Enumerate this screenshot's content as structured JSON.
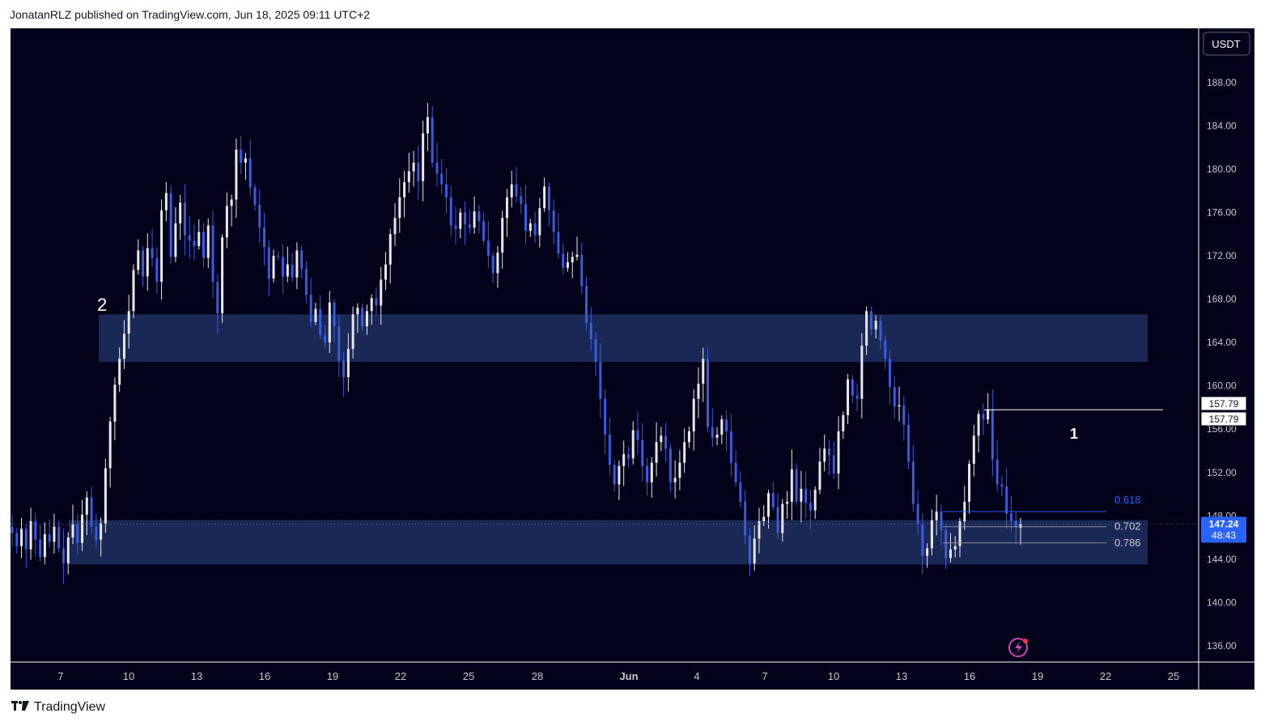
{
  "header": {
    "published": "JonatanRLZ published on TradingView.com, Jun 18, 2025 09:11 UTC+2"
  },
  "footer": {
    "brand": "TradingView",
    "logo_icon": "tradingview-logo-icon"
  },
  "colors": {
    "background": "#02021a",
    "zone": "#1e2d5e",
    "bull": "#e8e8ec",
    "bear": "#3a5bdc",
    "price_tag": "#2962ff",
    "fib_618": "#2962ff",
    "text": "#c8c8d0"
  },
  "chart_data": {
    "type": "candlestick",
    "currency": "USDT",
    "ylim": [
      134.5,
      193.0
    ],
    "y_ticks": [
      188,
      184,
      180,
      176,
      172,
      168,
      164,
      160,
      156,
      152,
      148,
      144,
      140,
      136
    ],
    "y_tick_labels": [
      "188.00",
      "184.00",
      "180.00",
      "176.00",
      "172.00",
      "168.00",
      "164.00",
      "160.00",
      "156.00",
      "152.00",
      "148.00",
      "144.00",
      "140.00",
      "136.00"
    ],
    "x_ticks": [
      "7",
      "10",
      "13",
      "16",
      "19",
      "22",
      "25",
      "28",
      "Jun",
      "4",
      "7",
      "10",
      "13",
      "16",
      "19",
      "22",
      "25"
    ],
    "grid": false,
    "current_price": {
      "value": 147.24,
      "label": "147.24",
      "countdown": "48:43"
    },
    "high_label": {
      "value": 157.79,
      "labels": [
        "157.79",
        "157.79"
      ]
    },
    "zones": [
      {
        "name": "upper-supply-zone",
        "top": 166.6,
        "bottom": 162.2
      },
      {
        "name": "lower-demand-zone",
        "top": 147.6,
        "bottom": 143.5
      }
    ],
    "horizontal_line": {
      "value": 157.79,
      "label": "1"
    },
    "annotations": [
      {
        "text": "2"
      },
      {
        "text": "1"
      }
    ],
    "fibonacci": [
      {
        "level": "0.618",
        "price": 148.4
      },
      {
        "level": "0.702",
        "price": 147.0
      },
      {
        "level": "0.786",
        "price": 145.5
      }
    ],
    "series_close": [
      146.4,
      145.2,
      146.8,
      144.9,
      147.5,
      145.8,
      144.2,
      146.3,
      145.6,
      147.0,
      145.0,
      143.6,
      146.0,
      147.2,
      145.5,
      148.1,
      149.7,
      147.0,
      145.8,
      147.3,
      152.4,
      156.7,
      160.1,
      162.5,
      164.8,
      166.9,
      170.7,
      172.5,
      170.1,
      172.7,
      171.8,
      169.6,
      176.2,
      177.8,
      171.9,
      175.0,
      176.9,
      173.9,
      173.4,
      172.9,
      174.2,
      171.8,
      174.8,
      169.6,
      166.7,
      173.7,
      176.6,
      177.2,
      181.8,
      180.6,
      181.0,
      178.3,
      176.7,
      174.6,
      172.8,
      169.9,
      172.0,
      171.9,
      170.1,
      171.2,
      170.0,
      172.5,
      170.8,
      168.4,
      165.9,
      167.1,
      164.7,
      164.0,
      167.7,
      165.5,
      162.3,
      160.8,
      163.4,
      166.6,
      167.2,
      165.5,
      166.9,
      168.1,
      167.4,
      169.8,
      171.2,
      174.0,
      175.5,
      177.4,
      178.8,
      179.8,
      180.6,
      178.9,
      183.3,
      184.8,
      180.6,
      179.6,
      178.6,
      177.4,
      174.8,
      174.5,
      176.0,
      174.9,
      174.6,
      176.1,
      175.2,
      173.4,
      172.0,
      170.4,
      172.3,
      175.5,
      177.4,
      178.6,
      177.5,
      176.8,
      174.3,
      175.0,
      173.9,
      176.4,
      178.4,
      176.2,
      174.2,
      172.2,
      170.9,
      171.4,
      171.9,
      172.1,
      169.2,
      165.8,
      164.3,
      162.2,
      158.8,
      155.5,
      152.7,
      150.9,
      152.6,
      153.7,
      153.3,
      155.9,
      155.0,
      152.6,
      151.1,
      152.9,
      154.8,
      155.4,
      154.2,
      151.1,
      151.5,
      152.9,
      154.8,
      155.8,
      158.8,
      160.2,
      162.5,
      156.2,
      155.2,
      155.5,
      156.9,
      155.8,
      152.9,
      151.1,
      149.3,
      146.2,
      143.6,
      145.9,
      147.5,
      147.9,
      150.1,
      148.8,
      146.4,
      149.1,
      149.3,
      152.3,
      149.3,
      150.5,
      149.2,
      148.5,
      150.4,
      153.0,
      154.2,
      153.6,
      151.9,
      155.8,
      157.3,
      160.6,
      159.1,
      158.8,
      163.7,
      166.9,
      165.2,
      166.0,
      164.2,
      162.5,
      159.9,
      158.1,
      158.2,
      156.4,
      153.0,
      149.1,
      147.2,
      144.3,
      145.0,
      147.6,
      148.4,
      146.7,
      144.1,
      144.9,
      145.2,
      147.5,
      149.3,
      152.8,
      155.4,
      157.4,
      156.9,
      157.8,
      153.2,
      150.9,
      150.7,
      148.2,
      147.5,
      146.9,
      147.24
    ]
  }
}
